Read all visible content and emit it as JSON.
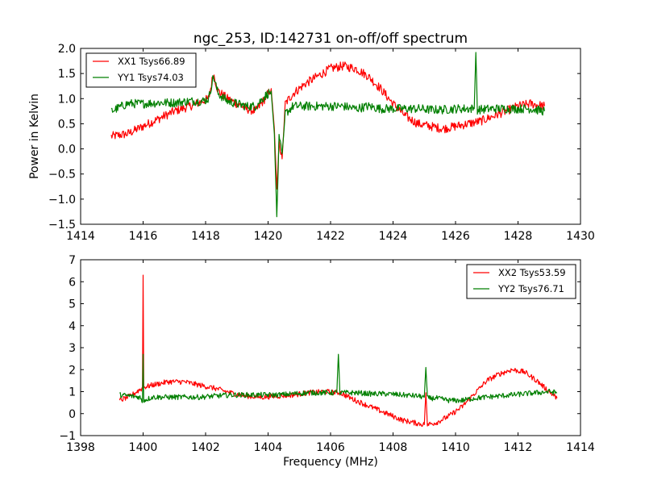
{
  "figure": {
    "title": "ngc_253, ID:142731 on-off/off spectrum"
  },
  "chart_data": [
    {
      "type": "line",
      "title": "ngc_253, ID:142731 on-off/off spectrum",
      "xlabel": "",
      "ylabel": "Power in Kelvin",
      "xlim": [
        1414,
        1430
      ],
      "ylim": [
        -1.5,
        2.0
      ],
      "xticks": [
        1414,
        1416,
        1418,
        1420,
        1422,
        1424,
        1426,
        1428,
        1430
      ],
      "xtick_labels": [
        "1414",
        "1416",
        "1418",
        "1420",
        "1422",
        "1424",
        "1426",
        "1428",
        "1430"
      ],
      "yticks": [
        -1.5,
        -1.0,
        -0.5,
        0.0,
        0.5,
        1.0,
        1.5,
        2.0
      ],
      "ytick_labels": [
        "−1.5",
        "−1.0",
        "−0.5",
        "0.0",
        "0.5",
        "1.0",
        "1.5",
        "2.0"
      ],
      "grid": false,
      "legend_position": "top-left",
      "noise": 0.09,
      "series": [
        {
          "name": "XX1 Tsys66.89",
          "color": "#ff0000",
          "x": [
            1414.98,
            1415.5,
            1416.0,
            1416.5,
            1417.0,
            1417.5,
            1417.9,
            1418.1,
            1418.25,
            1418.4,
            1418.7,
            1419.0,
            1419.3,
            1419.6,
            1419.9,
            1420.1,
            1420.2,
            1420.28,
            1420.35,
            1420.45,
            1420.55,
            1420.8,
            1421.2,
            1421.6,
            1422.0,
            1422.4,
            1422.8,
            1423.2,
            1423.6,
            1424.0,
            1424.4,
            1424.8,
            1425.2,
            1425.6,
            1426.0,
            1426.4,
            1426.8,
            1427.2,
            1427.6,
            1428.0,
            1428.4,
            1428.85
          ],
          "y": [
            0.25,
            0.3,
            0.45,
            0.6,
            0.75,
            0.85,
            0.95,
            1.0,
            1.5,
            1.15,
            1.0,
            0.9,
            0.8,
            0.75,
            1.0,
            1.2,
            0.4,
            -0.8,
            0.1,
            -0.2,
            0.9,
            1.1,
            1.3,
            1.45,
            1.6,
            1.65,
            1.6,
            1.45,
            1.2,
            0.9,
            0.65,
            0.5,
            0.45,
            0.4,
            0.45,
            0.5,
            0.55,
            0.65,
            0.75,
            0.85,
            0.9,
            0.85
          ]
        },
        {
          "name": "YY1 Tsys74.03",
          "color": "#007f00",
          "x": [
            1414.98,
            1415.5,
            1416.0,
            1416.5,
            1417.0,
            1417.5,
            1417.9,
            1418.1,
            1418.25,
            1418.4,
            1418.7,
            1419.0,
            1419.3,
            1419.6,
            1419.9,
            1420.1,
            1420.2,
            1420.28,
            1420.35,
            1420.45,
            1420.55,
            1420.8,
            1421.2,
            1421.6,
            1422.0,
            1422.4,
            1422.8,
            1423.2,
            1423.6,
            1424.0,
            1424.4,
            1424.8,
            1425.2,
            1425.6,
            1426.0,
            1426.4,
            1426.6,
            1426.65,
            1426.7,
            1427.2,
            1427.6,
            1428.0,
            1428.4,
            1428.85
          ],
          "y": [
            0.75,
            0.9,
            0.9,
            0.92,
            0.92,
            0.95,
            0.95,
            1.0,
            1.45,
            1.1,
            0.95,
            0.9,
            0.85,
            0.85,
            1.05,
            1.15,
            0.3,
            -1.35,
            0.2,
            -0.1,
            0.7,
            0.85,
            0.85,
            0.85,
            0.85,
            0.85,
            0.8,
            0.85,
            0.8,
            0.8,
            0.8,
            0.8,
            0.78,
            0.78,
            0.8,
            0.8,
            0.8,
            1.92,
            0.78,
            0.8,
            0.8,
            0.8,
            0.8,
            0.75
          ]
        }
      ]
    },
    {
      "type": "line",
      "title": "",
      "xlabel": "Frequency (MHz)",
      "ylabel": "",
      "xlim": [
        1398,
        1414
      ],
      "ylim": [
        -1,
        7
      ],
      "xticks": [
        1398,
        1400,
        1402,
        1404,
        1406,
        1408,
        1410,
        1412,
        1414
      ],
      "xtick_labels": [
        "1398",
        "1400",
        "1402",
        "1404",
        "1406",
        "1408",
        "1410",
        "1412",
        "1414"
      ],
      "yticks": [
        -1,
        0,
        1,
        2,
        3,
        4,
        5,
        6,
        7
      ],
      "ytick_labels": [
        "−1",
        "0",
        "1",
        "2",
        "3",
        "4",
        "5",
        "6",
        "7"
      ],
      "grid": false,
      "legend_position": "top-right",
      "noise": 0.12,
      "series": [
        {
          "name": "XX2 Tsys53.59",
          "color": "#ff0000",
          "x": [
            1399.25,
            1399.6,
            1399.9,
            1399.98,
            1400.0,
            1400.02,
            1400.3,
            1400.8,
            1401.3,
            1401.8,
            1402.3,
            1402.8,
            1403.3,
            1403.8,
            1404.3,
            1404.8,
            1405.3,
            1405.8,
            1406.3,
            1406.8,
            1407.3,
            1407.8,
            1408.3,
            1408.8,
            1409.0,
            1409.05,
            1409.1,
            1409.4,
            1409.8,
            1410.2,
            1410.6,
            1411.0,
            1411.4,
            1411.8,
            1412.2,
            1412.6,
            1413.0,
            1413.25
          ],
          "y": [
            0.6,
            0.8,
            1.1,
            1.15,
            6.3,
            1.2,
            1.3,
            1.45,
            1.45,
            1.3,
            1.15,
            0.95,
            0.8,
            0.75,
            0.8,
            0.85,
            0.95,
            1.0,
            0.95,
            0.6,
            0.3,
            0.0,
            -0.3,
            -0.45,
            -0.5,
            0.95,
            -0.5,
            -0.4,
            -0.1,
            0.3,
            0.9,
            1.5,
            1.8,
            2.0,
            1.9,
            1.5,
            1.0,
            0.7
          ]
        },
        {
          "name": "YY2 Tsys76.71",
          "color": "#007f00",
          "x": [
            1399.25,
            1399.6,
            1399.9,
            1399.98,
            1400.0,
            1400.02,
            1400.3,
            1400.8,
            1401.3,
            1401.8,
            1402.3,
            1402.8,
            1403.3,
            1403.8,
            1404.3,
            1404.8,
            1405.3,
            1405.8,
            1406.2,
            1406.25,
            1406.3,
            1406.8,
            1407.3,
            1407.8,
            1408.3,
            1408.8,
            1409.0,
            1409.05,
            1409.1,
            1409.4,
            1409.8,
            1410.2,
            1410.6,
            1411.0,
            1411.4,
            1411.8,
            1412.2,
            1412.6,
            1413.0,
            1413.25
          ],
          "y": [
            0.85,
            0.8,
            0.75,
            0.5,
            2.7,
            0.6,
            0.75,
            0.75,
            0.75,
            0.75,
            0.8,
            0.85,
            0.85,
            0.85,
            0.85,
            0.9,
            0.95,
            0.95,
            0.95,
            2.7,
            0.95,
            0.95,
            0.9,
            0.9,
            0.85,
            0.8,
            0.75,
            2.1,
            0.7,
            0.7,
            0.6,
            0.6,
            0.7,
            0.75,
            0.8,
            0.85,
            0.9,
            0.95,
            1.0,
            0.95
          ]
        }
      ]
    }
  ]
}
